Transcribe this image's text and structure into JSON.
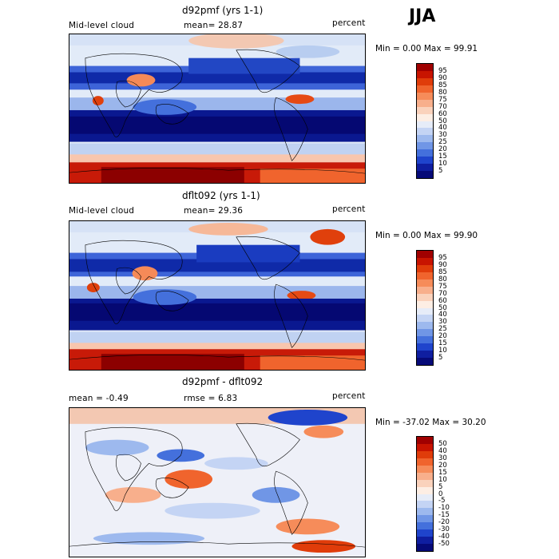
{
  "season": "JJA",
  "panels": [
    {
      "title": "d92pmf (yrs 1-1)",
      "left_label": "Mid-level cloud",
      "center_label": "mean=  28.87",
      "right_label": "percent",
      "minmax": "Min =   0.00 Max =  99.91",
      "colorbar_labels": [
        "95",
        "90",
        "85",
        "80",
        "75",
        "70",
        "60",
        "50",
        "40",
        "30",
        "25",
        "20",
        "15",
        "10",
        "5"
      ],
      "colors": [
        "#a00000",
        "#c81400",
        "#e03c0a",
        "#f0642d",
        "#f68c5a",
        "#f8af8c",
        "#fad2bc",
        "#fdeee4",
        "#e6ecf8",
        "#c4d4f4",
        "#9db9ee",
        "#7096e6",
        "#4470dc",
        "#1f44cc",
        "#0f1ea0",
        "#060a78"
      ]
    },
    {
      "title": "dflt092 (yrs 1-1)",
      "left_label": "Mid-level cloud",
      "center_label": "mean=  29.36",
      "right_label": "percent",
      "minmax": "Min =   0.00 Max =  99.90",
      "colorbar_labels": [
        "95",
        "90",
        "85",
        "80",
        "75",
        "70",
        "60",
        "50",
        "40",
        "30",
        "25",
        "20",
        "15",
        "10",
        "5"
      ],
      "colors": [
        "#a00000",
        "#c81400",
        "#e03c0a",
        "#f0642d",
        "#f68c5a",
        "#f8af8c",
        "#fad2bc",
        "#fdeee4",
        "#e6ecf8",
        "#c4d4f4",
        "#9db9ee",
        "#7096e6",
        "#4470dc",
        "#1f44cc",
        "#0f1ea0",
        "#060a78"
      ]
    },
    {
      "title": "d92pmf - dflt092",
      "left_label": "mean =   -0.49",
      "center_label": "rmse =   6.83",
      "right_label": "percent",
      "minmax": "Min = -37.02 Max =  30.20",
      "colorbar_labels": [
        "50",
        "40",
        "30",
        "20",
        "15",
        "10",
        "5",
        "0",
        "-5",
        "-10",
        "-15",
        "-20",
        "-30",
        "-40",
        "-50"
      ],
      "colors": [
        "#a00000",
        "#c81400",
        "#e03c0a",
        "#f0642d",
        "#f68c5a",
        "#f8af8c",
        "#fad2bc",
        "#fdeee4",
        "#e6ecf8",
        "#c4d4f4",
        "#9db9ee",
        "#7096e6",
        "#4470dc",
        "#1f44cc",
        "#0f1ea0",
        "#060a78"
      ]
    }
  ]
}
